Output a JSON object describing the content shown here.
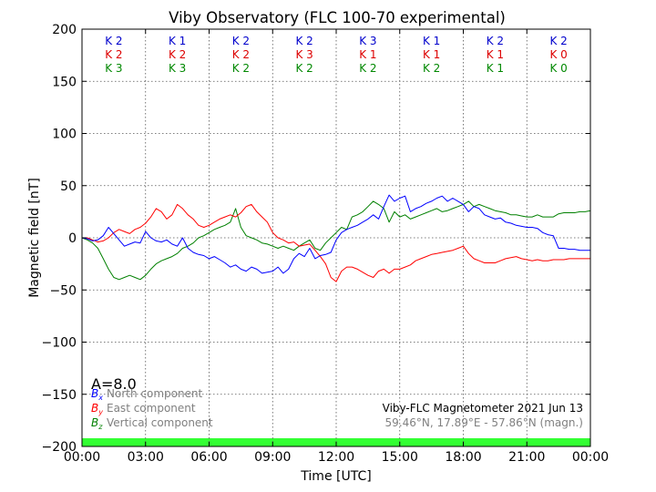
{
  "chart_data": {
    "type": "line",
    "title": "Viby Observatory (FLC 100-70 experimental)",
    "xlabel": "Time [UTC]",
    "ylabel": "Magnetic field [nT]",
    "xlim": [
      0,
      24
    ],
    "ylim": [
      -200,
      200
    ],
    "grid": true,
    "x_ticks": [
      0,
      3,
      6,
      9,
      12,
      15,
      18,
      21,
      24
    ],
    "x_tick_labels": [
      "00:00",
      "03:00",
      "06:00",
      "09:00",
      "12:00",
      "15:00",
      "18:00",
      "21:00",
      "00:00"
    ],
    "y_ticks": [
      -200,
      -150,
      -100,
      -50,
      0,
      50,
      100,
      150,
      200
    ],
    "y_tick_labels": [
      "−200",
      "−150",
      "−100",
      "−50",
      "0",
      "50",
      "100",
      "150",
      "200"
    ],
    "k_index": {
      "rows": [
        {
          "color": "#0000cc",
          "labels": [
            "K 2",
            "K 1",
            "K 2",
            "K 2",
            "K 3",
            "K 1",
            "K 2",
            "K 2"
          ]
        },
        {
          "color": "#dd0000",
          "labels": [
            "K 2",
            "K 2",
            "K 2",
            "K 3",
            "K 1",
            "K 1",
            "K 1",
            "K 0"
          ]
        },
        {
          "color": "#008800",
          "labels": [
            "K 3",
            "K 3",
            "K 2",
            "K 2",
            "K 2",
            "K 2",
            "K 1",
            "K 0"
          ]
        }
      ]
    },
    "a_index": "A=8.0",
    "legend": {
      "position": "lower-left",
      "entries": [
        {
          "symbol_base": "B",
          "symbol_sub": "x",
          "label": "North component",
          "color": "#0000ff"
        },
        {
          "symbol_base": "B",
          "symbol_sub": "y",
          "label": "East component",
          "color": "#ff0000"
        },
        {
          "symbol_base": "B",
          "symbol_sub": "z",
          "label": "Vertical component",
          "color": "#008000"
        }
      ]
    },
    "annotations": {
      "instrument": "Viby-FLC Magnetometer 2021 Jun 13",
      "location": "59.46°N, 17.89°E - 57.86°N (magn.)"
    },
    "status_bar_color": "#33ff33",
    "series": [
      {
        "name": "North component",
        "color": "#0000ff",
        "x": [
          0,
          0.25,
          0.5,
          0.75,
          1,
          1.25,
          1.5,
          1.75,
          2,
          2.25,
          2.5,
          2.75,
          3,
          3.25,
          3.5,
          3.75,
          4,
          4.25,
          4.5,
          4.75,
          5,
          5.25,
          5.5,
          5.75,
          6,
          6.25,
          6.5,
          6.75,
          7,
          7.25,
          7.5,
          7.75,
          8,
          8.25,
          8.5,
          8.75,
          9,
          9.25,
          9.5,
          9.75,
          10,
          10.25,
          10.5,
          10.75,
          11,
          11.25,
          11.5,
          11.75,
          12,
          12.25,
          12.5,
          12.75,
          13,
          13.25,
          13.5,
          13.75,
          14,
          14.25,
          14.5,
          14.75,
          15,
          15.25,
          15.5,
          15.75,
          16,
          16.25,
          16.5,
          16.75,
          17,
          17.25,
          17.5,
          17.75,
          18,
          18.25,
          18.5,
          18.75,
          19,
          19.25,
          19.5,
          19.75,
          20,
          20.25,
          20.5,
          20.75,
          21,
          21.25,
          21.5,
          21.75,
          22,
          22.25,
          22.5,
          22.75,
          23,
          23.25,
          23.5,
          23.75,
          24
        ],
        "values": [
          0,
          -1,
          -3,
          -2,
          2,
          10,
          4,
          -2,
          -8,
          -6,
          -4,
          -5,
          6,
          0,
          -3,
          -4,
          -2,
          -6,
          -8,
          0,
          -10,
          -14,
          -16,
          -17,
          -20,
          -18,
          -21,
          -24,
          -28,
          -26,
          -30,
          -32,
          -28,
          -30,
          -34,
          -33,
          -32,
          -28,
          -34,
          -30,
          -20,
          -15,
          -18,
          -10,
          -20,
          -17,
          -16,
          -14,
          -2,
          5,
          8,
          10,
          12,
          15,
          18,
          22,
          18,
          30,
          41,
          35,
          38,
          40,
          25,
          28,
          30,
          33,
          35,
          38,
          40,
          35,
          38,
          35,
          32,
          25,
          30,
          28,
          22,
          20,
          18,
          19,
          15,
          14,
          12,
          11,
          10,
          10,
          9,
          5,
          3,
          2,
          -10,
          -10,
          -11,
          -11,
          -12,
          -12,
          -12
        ]
      },
      {
        "name": "East component",
        "color": "#ff0000",
        "x": [
          0,
          0.25,
          0.5,
          0.75,
          1,
          1.25,
          1.5,
          1.75,
          2,
          2.25,
          2.5,
          2.75,
          3,
          3.25,
          3.5,
          3.75,
          4,
          4.25,
          4.5,
          4.75,
          5,
          5.25,
          5.5,
          5.75,
          6,
          6.25,
          6.5,
          6.75,
          7,
          7.25,
          7.5,
          7.75,
          8,
          8.25,
          8.5,
          8.75,
          9,
          9.25,
          9.5,
          9.75,
          10,
          10.25,
          10.5,
          10.75,
          11,
          11.25,
          11.5,
          11.75,
          12,
          12.25,
          12.5,
          12.75,
          13,
          13.25,
          13.5,
          13.75,
          14,
          14.25,
          14.5,
          14.75,
          15,
          15.25,
          15.5,
          15.75,
          16,
          16.25,
          16.5,
          16.75,
          17,
          17.25,
          17.5,
          17.75,
          18,
          18.25,
          18.5,
          18.75,
          19,
          19.25,
          19.5,
          19.75,
          20,
          20.25,
          20.5,
          20.75,
          21,
          21.25,
          21.5,
          21.75,
          22,
          22.25,
          22.5,
          22.75,
          23,
          23.25,
          23.5,
          23.75,
          24
        ],
        "values": [
          0,
          0,
          -2,
          -4,
          -3,
          0,
          5,
          8,
          6,
          4,
          8,
          10,
          14,
          20,
          28,
          25,
          18,
          22,
          32,
          28,
          22,
          18,
          12,
          10,
          12,
          15,
          18,
          20,
          22,
          20,
          24,
          30,
          32,
          25,
          20,
          15,
          5,
          0,
          -2,
          -5,
          -4,
          -8,
          -7,
          -6,
          -12,
          -18,
          -25,
          -38,
          -42,
          -32,
          -28,
          -28,
          -30,
          -33,
          -36,
          -38,
          -32,
          -30,
          -34,
          -30,
          -30,
          -28,
          -26,
          -22,
          -20,
          -18,
          -16,
          -15,
          -14,
          -13,
          -12,
          -10,
          -8,
          -15,
          -20,
          -22,
          -24,
          -24,
          -24,
          -22,
          -20,
          -19,
          -18,
          -20,
          -21,
          -22,
          -21,
          -22,
          -22,
          -21,
          -21,
          -21,
          -20,
          -20,
          -20,
          -20,
          -20
        ]
      },
      {
        "name": "Vertical component",
        "color": "#008000",
        "x": [
          0,
          0.25,
          0.5,
          0.75,
          1,
          1.25,
          1.5,
          1.75,
          2,
          2.25,
          2.5,
          2.75,
          3,
          3.25,
          3.5,
          3.75,
          4,
          4.25,
          4.5,
          4.75,
          5,
          5.25,
          5.5,
          5.75,
          6,
          6.25,
          6.5,
          6.75,
          7,
          7.25,
          7.5,
          7.75,
          8,
          8.25,
          8.5,
          8.75,
          9,
          9.25,
          9.5,
          9.75,
          10,
          10.25,
          10.5,
          10.75,
          11,
          11.25,
          11.5,
          11.75,
          12,
          12.25,
          12.5,
          12.75,
          13,
          13.25,
          13.5,
          13.75,
          14,
          14.25,
          14.5,
          14.75,
          15,
          15.25,
          15.5,
          15.75,
          16,
          16.25,
          16.5,
          16.75,
          17,
          17.25,
          17.5,
          17.75,
          18,
          18.25,
          18.5,
          18.75,
          19,
          19.25,
          19.5,
          19.75,
          20,
          20.25,
          20.5,
          20.75,
          21,
          21.25,
          21.5,
          21.75,
          22,
          22.25,
          22.5,
          22.75,
          23,
          23.25,
          23.5,
          23.75,
          24
        ],
        "values": [
          0,
          -2,
          -5,
          -10,
          -20,
          -30,
          -38,
          -40,
          -38,
          -36,
          -38,
          -40,
          -36,
          -30,
          -25,
          -22,
          -20,
          -18,
          -15,
          -10,
          -8,
          -5,
          0,
          2,
          5,
          8,
          10,
          12,
          15,
          28,
          10,
          2,
          0,
          -2,
          -5,
          -6,
          -8,
          -10,
          -8,
          -10,
          -12,
          -8,
          -5,
          -2,
          -10,
          -12,
          -5,
          0,
          5,
          10,
          8,
          20,
          22,
          25,
          30,
          35,
          32,
          28,
          15,
          25,
          20,
          22,
          18,
          20,
          22,
          24,
          26,
          28,
          25,
          26,
          28,
          30,
          32,
          35,
          30,
          32,
          30,
          28,
          26,
          25,
          24,
          22,
          22,
          21,
          20,
          20,
          22,
          20,
          20,
          20,
          23,
          24,
          24,
          24,
          25,
          25,
          26
        ]
      }
    ]
  }
}
